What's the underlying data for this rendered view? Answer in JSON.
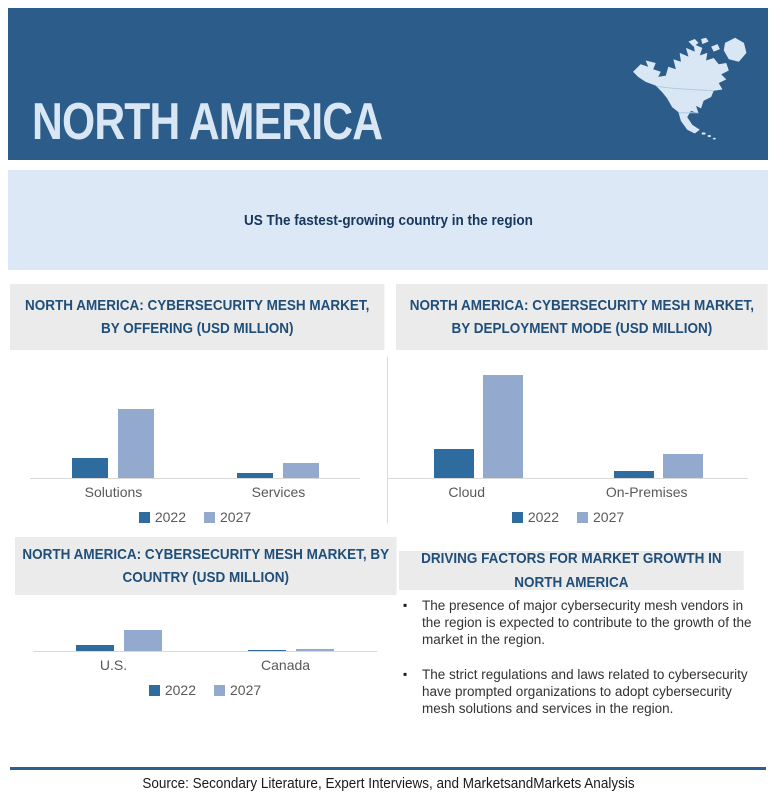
{
  "theme": {
    "header_bg": "#2B5C8A",
    "header_text": "#D9E6F3",
    "banner_bg": "#DCE8F5",
    "banner_text": "#17365D",
    "panel_title_bg": "#EBEBEB",
    "panel_title_text": "#1F4E79",
    "bar_2022": "#2E6B9F",
    "bar_2027": "#94A9CE",
    "axis_line": "#D9D9D9",
    "label_text": "#595959",
    "body_text": "#333333",
    "footer_line": "#2E5F8C",
    "footer_text": "#1A1A1A"
  },
  "header": {
    "title": "NORTH AMERICA",
    "map_icon": "north-america-map"
  },
  "banner": {
    "text": "US The fastest-growing country in the region"
  },
  "chart_data": [
    {
      "type": "bar",
      "title": "NORTH AMERICA: CYBERSECURITY MESH MARKET, BY OFFERING (USD MILLION)",
      "categories": [
        "Solutions",
        "Services"
      ],
      "series": [
        {
          "name": "2022",
          "values": [
            20,
            5
          ]
        },
        {
          "name": "2027",
          "values": [
            69,
            15
          ]
        }
      ],
      "xlabel": "",
      "ylabel": "",
      "legend_position": "bottom",
      "axis_tick_labels_shown": false,
      "grid": false
    },
    {
      "type": "bar",
      "title": "NORTH AMERICA: CYBERSECURITY MESH MARKET, BY DEPLOYMENT MODE (USD MILLION)",
      "categories": [
        "Cloud",
        "On-Premises"
      ],
      "series": [
        {
          "name": "2022",
          "values": [
            29,
            7
          ]
        },
        {
          "name": "2027",
          "values": [
            103,
            24
          ]
        }
      ],
      "xlabel": "",
      "ylabel": "",
      "legend_position": "bottom",
      "axis_tick_labels_shown": false,
      "grid": false
    },
    {
      "type": "bar",
      "title": "NORTH AMERICA: CYBERSECURITY MESH MARKET,  BY COUNTRY (USD MILLION)",
      "categories": [
        "U.S.",
        "Canada"
      ],
      "series": [
        {
          "name": "2022",
          "values": [
            6,
            1
          ]
        },
        {
          "name": "2027",
          "values": [
            21,
            2
          ]
        }
      ],
      "xlabel": "",
      "ylabel": "",
      "legend_position": "bottom",
      "axis_tick_labels_shown": false,
      "grid": false
    }
  ],
  "driving_factors": {
    "title": "DRIVING FACTORS FOR MARKET GROWTH IN NORTH AMERICA",
    "bullets": [
      "The presence of major cybersecurity mesh vendors in the region is expected to contribute to the growth of the market in the region.",
      "The strict regulations and laws related to cybersecurity have prompted organizations to adopt cybersecurity mesh solutions and services in the region."
    ]
  },
  "footer": {
    "text": "Source: Secondary Literature, Expert Interviews, and MarketsandMarkets Analysis"
  }
}
